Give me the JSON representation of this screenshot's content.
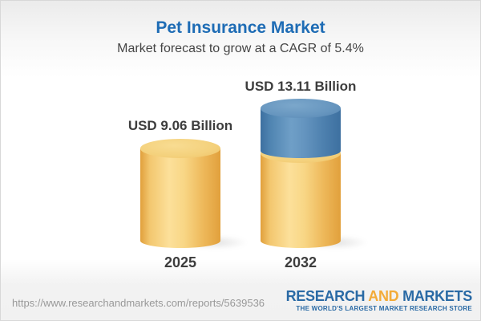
{
  "header": {
    "title": "Pet Insurance Market",
    "subtitle": "Market forecast to grow at a CAGR of 5.4%"
  },
  "chart_data": {
    "type": "bar",
    "subtype": "3d-cylinder-stacked",
    "categories": [
      "2025",
      "2032"
    ],
    "values": [
      9.06,
      13.11
    ],
    "value_labels": [
      "USD 9.06 Billion",
      "USD 13.11 Billion"
    ],
    "unit": "USD Billion",
    "cagr_pct": 5.4,
    "title": "Pet Insurance Market",
    "subtitle": "Market forecast to grow at a CAGR of 5.4%",
    "legend_position": "none",
    "grid": false,
    "colors": {
      "base_segment": "#f1c469",
      "growth_segment": "#5a8ab8",
      "label_text": "#3d3d3d",
      "title_text": "#1e6cb5"
    },
    "series": [
      {
        "name": "base",
        "values": [
          9.06,
          9.06
        ],
        "color": "#f1c469"
      },
      {
        "name": "growth",
        "values": [
          0,
          4.05
        ],
        "color": "#5a8ab8"
      }
    ]
  },
  "footer": {
    "url": "https://www.researchandmarkets.com/reports/5639536",
    "logo": {
      "word1": "RESEARCH",
      "word2": "AND",
      "word3": "MARKETS",
      "tagline": "THE WORLD'S LARGEST MARKET RESEARCH STORE",
      "blue": "#2a6aa5",
      "orange": "#f3ab38"
    }
  }
}
